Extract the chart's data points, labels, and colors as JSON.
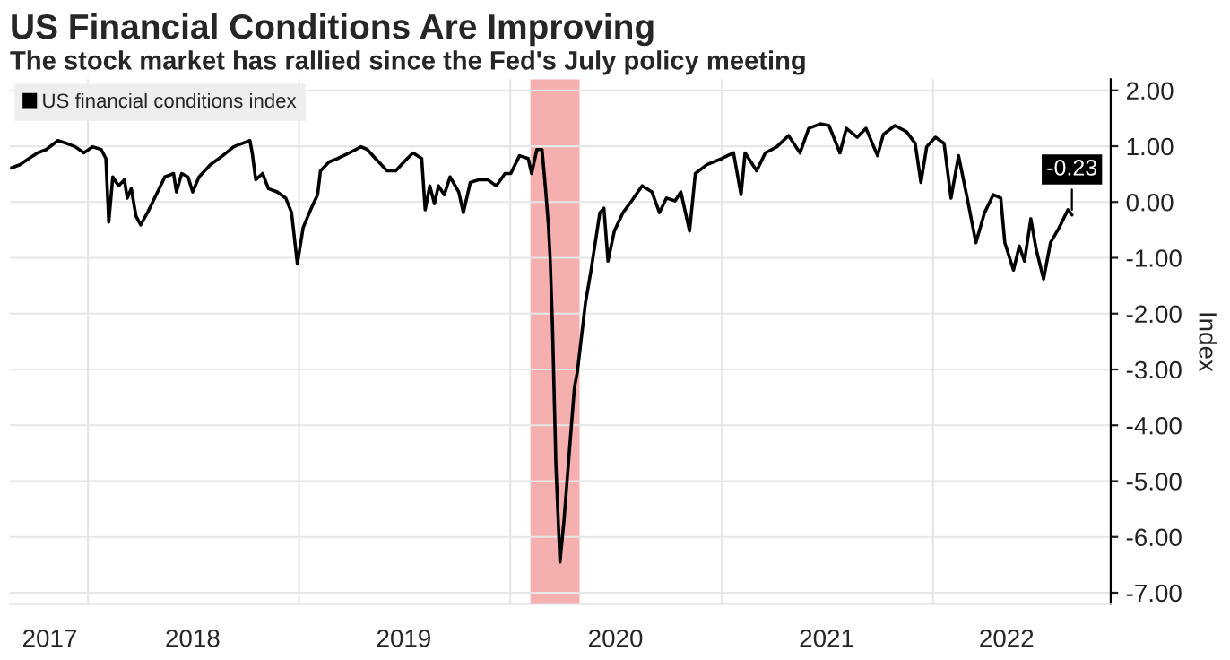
{
  "chart_data": {
    "type": "line",
    "title": "US Financial Conditions Are Improving",
    "subtitle": "The stock market has rallied since the Fed's July policy meeting",
    "ylabel": "Index",
    "x": [
      "2017-08-22",
      "2017-09-06",
      "2017-09-21",
      "2017-10-06",
      "2017-10-21",
      "2017-11-10",
      "2017-11-25",
      "2017-12-10",
      "2017-12-25",
      "2018-01-09",
      "2018-01-24",
      "2018-02-01",
      "2018-02-06",
      "2018-02-13",
      "2018-02-23",
      "2018-03-05",
      "2018-03-10",
      "2018-03-17",
      "2018-03-25",
      "2018-04-02",
      "2018-04-14",
      "2018-04-29",
      "2018-05-14",
      "2018-05-29",
      "2018-06-03",
      "2018-06-12",
      "2018-06-23",
      "2018-07-01",
      "2018-07-12",
      "2018-08-01",
      "2018-08-22",
      "2018-09-10",
      "2018-09-25",
      "2018-10-08",
      "2018-10-12",
      "2018-10-18",
      "2018-10-30",
      "2018-11-09",
      "2018-11-24",
      "2018-12-09",
      "2018-12-19",
      "2018-12-29",
      "2019-01-08",
      "2019-01-23",
      "2019-02-02",
      "2019-02-07",
      "2019-02-22",
      "2019-03-09",
      "2019-03-29",
      "2019-04-18",
      "2019-04-29",
      "2019-05-13",
      "2019-05-23",
      "2019-06-02",
      "2019-06-17",
      "2019-07-07",
      "2019-07-17",
      "2019-08-01",
      "2019-08-07",
      "2019-08-15",
      "2019-08-23",
      "2019-08-30",
      "2019-09-09",
      "2019-09-19",
      "2019-10-04",
      "2019-10-12",
      "2019-10-24",
      "2019-11-08",
      "2019-11-23",
      "2019-12-08",
      "2019-12-23",
      "2020-01-02",
      "2020-01-17",
      "2020-02-01",
      "2020-02-07",
      "2020-02-16",
      "2020-02-25",
      "2020-03-02",
      "2020-03-07",
      "2020-03-10",
      "2020-03-14",
      "2020-03-20",
      "2020-03-27",
      "2020-04-03",
      "2020-04-12",
      "2020-04-21",
      "2020-04-26",
      "2020-05-10",
      "2020-05-19",
      "2020-06-04",
      "2020-06-11",
      "2020-06-18",
      "2020-06-29",
      "2020-07-14",
      "2020-07-29",
      "2020-08-16",
      "2020-09-02",
      "2020-09-15",
      "2020-09-27",
      "2020-10-12",
      "2020-10-22",
      "2020-11-06",
      "2020-11-16",
      "2020-12-06",
      "2021-01-01",
      "2021-01-21",
      "2021-02-03",
      "2021-02-10",
      "2021-03-02",
      "2021-03-17",
      "2021-04-06",
      "2021-04-26",
      "2021-05-16",
      "2021-05-31",
      "2021-06-20",
      "2021-07-05",
      "2021-07-24",
      "2021-08-04",
      "2021-08-23",
      "2021-09-07",
      "2021-09-27",
      "2021-10-07",
      "2021-10-27",
      "2021-11-16",
      "2021-12-01",
      "2021-12-11",
      "2021-12-21",
      "2022-01-05",
      "2022-01-20",
      "2022-02-01",
      "2022-02-14",
      "2022-03-01",
      "2022-03-16",
      "2022-03-31",
      "2022-04-15",
      "2022-04-28",
      "2022-05-05",
      "2022-05-20",
      "2022-05-30",
      "2022-06-08",
      "2022-06-19",
      "2022-06-28",
      "2022-07-11",
      "2022-07-23",
      "2022-08-07",
      "2022-08-22",
      "2022-08-29"
    ],
    "series": [
      {
        "name": "US financial conditions index",
        "color": "#000000",
        "values": [
          0.61,
          0.67,
          0.78,
          0.88,
          0.94,
          1.1,
          1.05,
          0.99,
          0.88,
          0.99,
          0.94,
          0.78,
          -0.36,
          0.45,
          0.29,
          0.4,
          0.07,
          0.24,
          -0.25,
          -0.41,
          -0.19,
          0.13,
          0.45,
          0.51,
          0.18,
          0.51,
          0.45,
          0.18,
          0.45,
          0.67,
          0.83,
          0.99,
          1.05,
          1.1,
          0.88,
          0.4,
          0.51,
          0.24,
          0.18,
          0.07,
          -0.19,
          -1.11,
          -0.46,
          -0.09,
          0.13,
          0.56,
          0.72,
          0.78,
          0.88,
          0.99,
          0.94,
          0.78,
          0.67,
          0.56,
          0.56,
          0.78,
          0.88,
          0.78,
          -0.14,
          0.29,
          -0.03,
          0.29,
          0.13,
          0.45,
          0.18,
          -0.19,
          0.35,
          0.4,
          0.4,
          0.29,
          0.51,
          0.51,
          0.83,
          0.78,
          0.51,
          0.94,
          0.94,
          0.24,
          -0.41,
          -1.0,
          -2.2,
          -4.72,
          -6.45,
          -5.7,
          -4.5,
          -3.32,
          -3.05,
          -1.81,
          -1.27,
          -0.19,
          -0.11,
          -1.06,
          -0.52,
          -0.19,
          0.02,
          0.29,
          0.18,
          -0.19,
          0.07,
          0.02,
          0.18,
          -0.52,
          0.51,
          0.67,
          0.78,
          0.88,
          0.13,
          0.88,
          0.56,
          0.88,
          0.99,
          1.19,
          0.88,
          1.32,
          1.4,
          1.37,
          0.88,
          1.32,
          1.16,
          1.32,
          0.83,
          1.21,
          1.37,
          1.26,
          1.05,
          0.35,
          0.99,
          1.16,
          1.05,
          0.07,
          0.83,
          0.07,
          -0.73,
          -0.19,
          0.13,
          0.07,
          -0.73,
          -1.22,
          -0.79,
          -1.06,
          -0.3,
          -0.84,
          -1.38,
          -0.73,
          -0.46,
          -0.14,
          -0.23
        ]
      }
    ],
    "xlim": [
      "2017-08-19",
      "2022-11-04"
    ],
    "xticks": [
      {
        "value": "2017-10-27",
        "label": "2017"
      },
      {
        "value": "2018-01-01",
        "label": null
      },
      {
        "value": "2018-07-01",
        "label": "2018"
      },
      {
        "value": "2019-01-01",
        "label": null
      },
      {
        "value": "2019-07-01",
        "label": "2019"
      },
      {
        "value": "2020-01-01",
        "label": null
      },
      {
        "value": "2020-07-01",
        "label": "2020"
      },
      {
        "value": "2021-01-01",
        "label": null
      },
      {
        "value": "2021-07-01",
        "label": "2021"
      },
      {
        "value": "2022-01-01",
        "label": null
      },
      {
        "value": "2022-05-08",
        "label": "2022"
      }
    ],
    "ylim": [
      -7.2,
      2.2
    ],
    "yticks": [
      {
        "value": 2,
        "label": "2.00"
      },
      {
        "value": 1,
        "label": "1.00"
      },
      {
        "value": 0,
        "label": "0.00"
      },
      {
        "value": -1,
        "label": "-1.00"
      },
      {
        "value": -2,
        "label": "-2.00"
      },
      {
        "value": -3,
        "label": "-3.00"
      },
      {
        "value": -4,
        "label": "-4.00"
      },
      {
        "value": -5,
        "label": "-5.00"
      },
      {
        "value": -6,
        "label": "-6.00"
      },
      {
        "value": -7,
        "label": "-7.00"
      }
    ],
    "bands": [
      {
        "axis": "x",
        "from": "2020-02-05",
        "to": "2020-04-30",
        "color": "#f4a6a6"
      }
    ],
    "annotations": [
      {
        "text": "-0.23",
        "x": "2022-08-29",
        "y": -0.23
      }
    ],
    "grid": true,
    "legend": "top left",
    "marker": "none",
    "line_style": "solid"
  }
}
